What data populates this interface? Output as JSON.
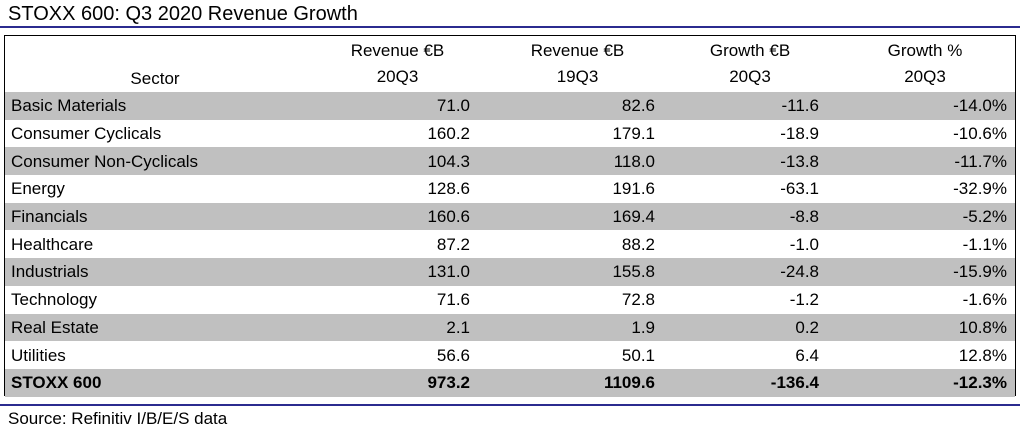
{
  "title": "STOXX 600: Q3 2020 Revenue Growth",
  "header": {
    "sector": "Sector",
    "columns": [
      {
        "line1": "Revenue €B",
        "line2": "20Q3"
      },
      {
        "line1": "Revenue €B",
        "line2": "19Q3"
      },
      {
        "line1": "Growth €B",
        "line2": "20Q3"
      },
      {
        "line1": "Growth %",
        "line2": "20Q3"
      }
    ]
  },
  "rows": [
    {
      "sector": "Basic Materials",
      "rev20": "71.0",
      "rev19": "82.6",
      "growth": "-11.6",
      "pct": "-14.0%"
    },
    {
      "sector": "Consumer Cyclicals",
      "rev20": "160.2",
      "rev19": "179.1",
      "growth": "-18.9",
      "pct": "-10.6%"
    },
    {
      "sector": "Consumer Non-Cyclicals",
      "rev20": "104.3",
      "rev19": "118.0",
      "growth": "-13.8",
      "pct": "-11.7%"
    },
    {
      "sector": "Energy",
      "rev20": "128.6",
      "rev19": "191.6",
      "growth": "-63.1",
      "pct": "-32.9%"
    },
    {
      "sector": "Financials",
      "rev20": "160.6",
      "rev19": "169.4",
      "growth": "-8.8",
      "pct": "-5.2%"
    },
    {
      "sector": "Healthcare",
      "rev20": "87.2",
      "rev19": "88.2",
      "growth": "-1.0",
      "pct": "-1.1%"
    },
    {
      "sector": "Industrials",
      "rev20": "131.0",
      "rev19": "155.8",
      "growth": "-24.8",
      "pct": "-15.9%"
    },
    {
      "sector": "Technology",
      "rev20": "71.6",
      "rev19": "72.8",
      "growth": "-1.2",
      "pct": "-1.6%"
    },
    {
      "sector": "Real Estate",
      "rev20": "2.1",
      "rev19": "1.9",
      "growth": "0.2",
      "pct": "10.8%"
    },
    {
      "sector": "Utilities",
      "rev20": "56.6",
      "rev19": "50.1",
      "growth": "6.4",
      "pct": "12.8%"
    }
  ],
  "total": {
    "sector": "STOXX 600",
    "rev20": "973.2",
    "rev19": "1109.6",
    "growth": "-136.4",
    "pct": "-12.3%"
  },
  "source": "Source: Refinitiv I/B/E/S data",
  "colors": {
    "rule": "#2b2b8f",
    "row_shade": "#c0c0c0"
  }
}
